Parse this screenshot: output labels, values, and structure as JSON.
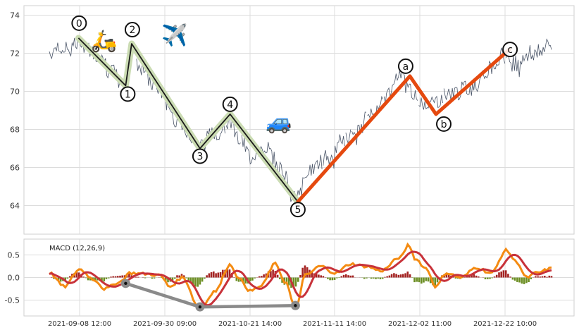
{
  "chart_data": [
    {
      "type": "line",
      "title": "",
      "ylim": [
        62.5,
        74.5
      ],
      "yticks": [
        64,
        66,
        68,
        70,
        72,
        74
      ],
      "xticks": [
        "2021-09-08 12:00",
        "2021-09-30 09:00",
        "2021-10-21 14:00",
        "2021-11-11 14:00",
        "2021-12-02 11:00",
        "2021-12-22 10:00"
      ],
      "grid": true,
      "price_anchors": [
        {
          "x": 0.0,
          "y": 72.1
        },
        {
          "x": 0.03,
          "y": 72.2
        },
        {
          "x": 0.06,
          "y": 72.6
        },
        {
          "x": 0.09,
          "y": 72.0
        },
        {
          "x": 0.125,
          "y": 71.0
        },
        {
          "x": 0.15,
          "y": 70.2
        },
        {
          "x": 0.165,
          "y": 72.4
        },
        {
          "x": 0.18,
          "y": 71.3
        },
        {
          "x": 0.21,
          "y": 70.3
        },
        {
          "x": 0.26,
          "y": 68.4
        },
        {
          "x": 0.3,
          "y": 67.2
        },
        {
          "x": 0.33,
          "y": 67.8
        },
        {
          "x": 0.36,
          "y": 68.5
        },
        {
          "x": 0.38,
          "y": 67.4
        },
        {
          "x": 0.4,
          "y": 66.6
        },
        {
          "x": 0.43,
          "y": 67.1
        },
        {
          "x": 0.46,
          "y": 66.0
        },
        {
          "x": 0.49,
          "y": 64.3
        },
        {
          "x": 0.52,
          "y": 65.9
        },
        {
          "x": 0.56,
          "y": 66.6
        },
        {
          "x": 0.6,
          "y": 67.6
        },
        {
          "x": 0.65,
          "y": 69.1
        },
        {
          "x": 0.7,
          "y": 70.7
        },
        {
          "x": 0.715,
          "y": 70.2
        },
        {
          "x": 0.735,
          "y": 69.5
        },
        {
          "x": 0.76,
          "y": 69.4
        },
        {
          "x": 0.8,
          "y": 69.9
        },
        {
          "x": 0.84,
          "y": 70.2
        },
        {
          "x": 0.87,
          "y": 71.1
        },
        {
          "x": 0.9,
          "y": 71.9
        },
        {
          "x": 0.93,
          "y": 71.5
        },
        {
          "x": 0.96,
          "y": 72.0
        },
        {
          "x": 1.0,
          "y": 72.4
        }
      ],
      "series": [
        {
          "style": "impulse",
          "colors": [
            "#1a1a1a",
            "#cbdcb3"
          ],
          "points": [
            {
              "x": 0.058,
              "y": 72.8,
              "label": "0"
            },
            {
              "x": 0.152,
              "y": 70.3,
              "label": "1"
            },
            {
              "x": 0.164,
              "y": 72.5,
              "label": "2"
            },
            {
              "x": 0.3,
              "y": 67.0,
              "label": "3"
            },
            {
              "x": 0.36,
              "y": 68.8,
              "label": "4"
            },
            {
              "x": 0.495,
              "y": 64.2,
              "label": "5"
            }
          ]
        },
        {
          "style": "correction",
          "colors": [
            "#e5490f"
          ],
          "points": [
            {
              "x": 0.495,
              "y": 64.2,
              "label": ""
            },
            {
              "x": 0.718,
              "y": 70.8,
              "label": "a"
            },
            {
              "x": 0.77,
              "y": 68.8,
              "label": "b"
            },
            {
              "x": 0.916,
              "y": 72.2,
              "label": "c"
            }
          ]
        }
      ],
      "emoji": [
        "🛵",
        "✈️",
        "🚙"
      ]
    },
    {
      "type": "line",
      "title": "MACD (12,26,9)",
      "ylim": [
        -0.85,
        0.85
      ],
      "yticks": [
        -0.5,
        0.0,
        0.5
      ],
      "colors": {
        "macd": "#f48b12",
        "signal": "#c8323a",
        "hist_pos": "#a42423",
        "hist_neg": "#6b8e23",
        "divergence": "#8a8a8a"
      },
      "macd_anchors": [
        {
          "x": 0.0,
          "y": 0.1
        },
        {
          "x": 0.03,
          "y": -0.2
        },
        {
          "x": 0.06,
          "y": 0.18
        },
        {
          "x": 0.09,
          "y": -0.05
        },
        {
          "x": 0.11,
          "y": -0.25
        },
        {
          "x": 0.14,
          "y": -0.1
        },
        {
          "x": 0.16,
          "y": 0.1
        },
        {
          "x": 0.19,
          "y": 0.08
        },
        {
          "x": 0.22,
          "y": 0.05
        },
        {
          "x": 0.24,
          "y": -0.2
        },
        {
          "x": 0.265,
          "y": 0.0
        },
        {
          "x": 0.3,
          "y": -0.7
        },
        {
          "x": 0.33,
          "y": -0.3
        },
        {
          "x": 0.36,
          "y": 0.28
        },
        {
          "x": 0.38,
          "y": -0.05
        },
        {
          "x": 0.4,
          "y": -0.3
        },
        {
          "x": 0.42,
          "y": -0.2
        },
        {
          "x": 0.45,
          "y": 0.3
        },
        {
          "x": 0.47,
          "y": -0.1
        },
        {
          "x": 0.49,
          "y": -0.68
        },
        {
          "x": 0.51,
          "y": 0.05
        },
        {
          "x": 0.54,
          "y": 0.25
        },
        {
          "x": 0.57,
          "y": 0.1
        },
        {
          "x": 0.6,
          "y": 0.3
        },
        {
          "x": 0.63,
          "y": 0.25
        },
        {
          "x": 0.66,
          "y": 0.15
        },
        {
          "x": 0.7,
          "y": 0.45
        },
        {
          "x": 0.715,
          "y": 0.72
        },
        {
          "x": 0.73,
          "y": 0.4
        },
        {
          "x": 0.75,
          "y": 0.2
        },
        {
          "x": 0.77,
          "y": -0.2
        },
        {
          "x": 0.79,
          "y": 0.1
        },
        {
          "x": 0.82,
          "y": 0.0
        },
        {
          "x": 0.85,
          "y": 0.22
        },
        {
          "x": 0.88,
          "y": 0.1
        },
        {
          "x": 0.91,
          "y": 0.6
        },
        {
          "x": 0.93,
          "y": 0.35
        },
        {
          "x": 0.95,
          "y": 0.0
        },
        {
          "x": 0.97,
          "y": 0.1
        },
        {
          "x": 1.0,
          "y": 0.2
        }
      ],
      "divergence_points": [
        {
          "x": 0.152,
          "y": -0.13
        },
        {
          "x": 0.3,
          "y": -0.65
        },
        {
          "x": 0.49,
          "y": -0.62
        }
      ]
    }
  ]
}
